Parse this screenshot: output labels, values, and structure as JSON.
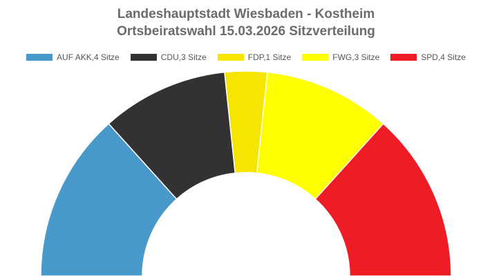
{
  "chart_data": {
    "type": "pie",
    "variant": "half-donut",
    "title": "Landeshauptstadt Wiesbaden - Kostheim",
    "subtitle": "Ortsbeiratswahl 15.03.2026 Sitzverteilung",
    "legend_position": "top",
    "series": [
      {
        "name": "AUF AKK",
        "legend_label": "AUF AKK,4 Sitze",
        "value": 4,
        "color": "#4899c9"
      },
      {
        "name": "CDU",
        "legend_label": "CDU,3 Sitze",
        "value": 3,
        "color": "#333133"
      },
      {
        "name": "FDP",
        "legend_label": "FDP,1 Sitze",
        "value": 1,
        "color": "#f6e500"
      },
      {
        "name": "FWG",
        "legend_label": "FWG,3 Sitze",
        "value": 3,
        "color": "#ffff00"
      },
      {
        "name": "SPD",
        "legend_label": "SPD,4 Sitze",
        "value": 4,
        "color": "#ee1c25"
      }
    ]
  }
}
